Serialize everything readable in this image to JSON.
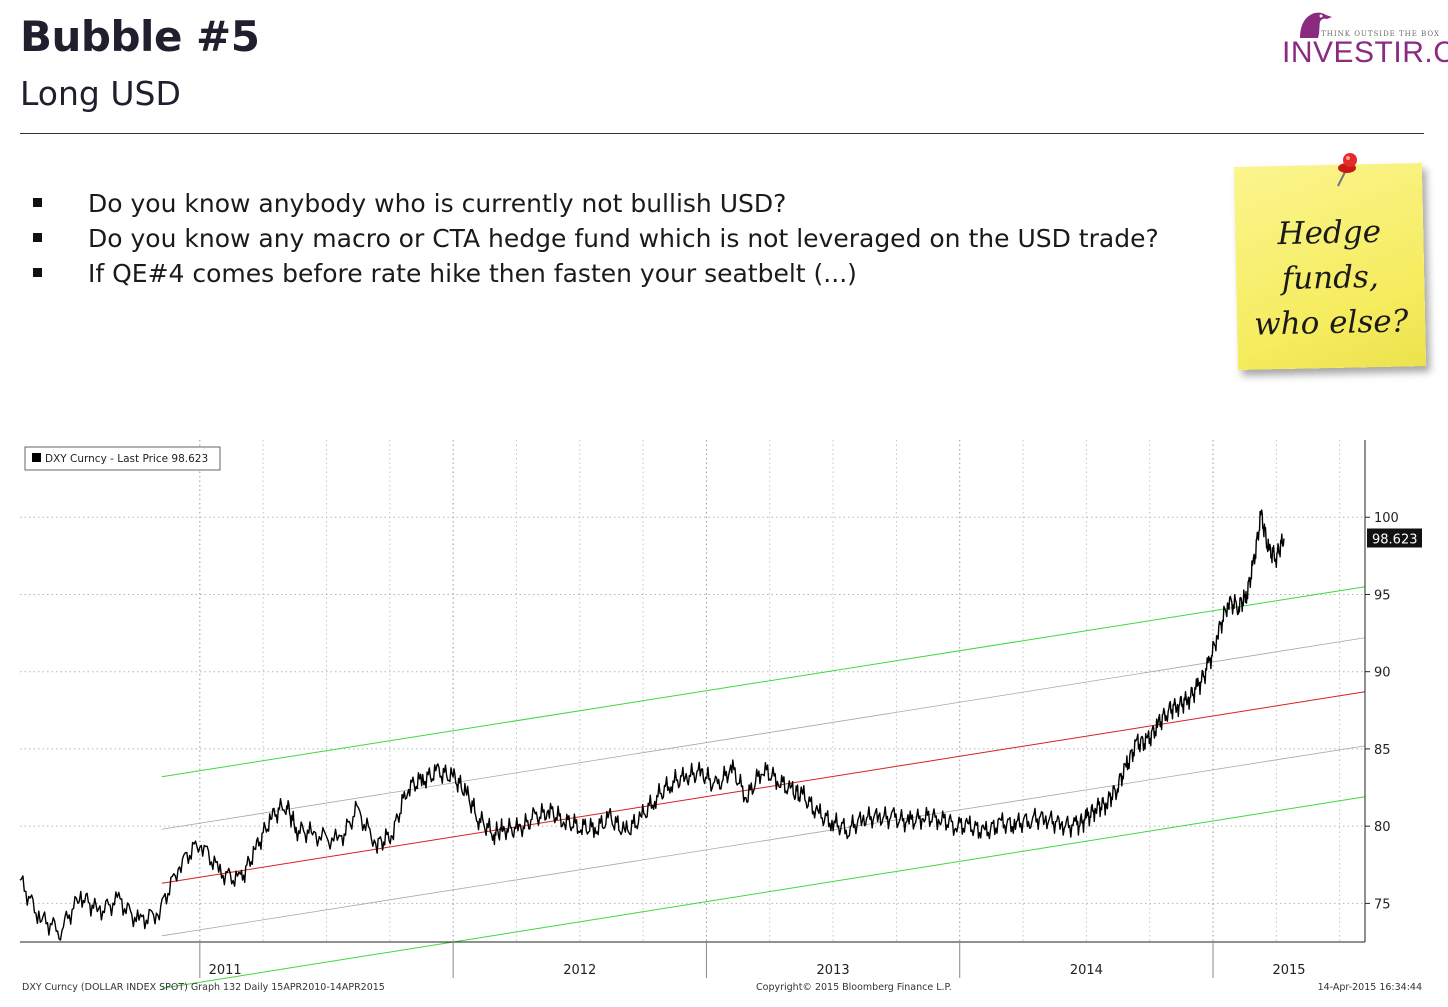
{
  "header": {
    "title": "Bubble #5",
    "subtitle": "Long USD"
  },
  "logo": {
    "name": "INVESTIR.CH",
    "tagline": "THINK OUTSIDE THE BOX"
  },
  "bullets": [
    "Do you know anybody who is currently not bullish USD?",
    "Do you know any macro or CTA hedge fund which is not leveraged on the USD trade?",
    "If QE#4 comes before rate hike then fasten your seatbelt (...)"
  ],
  "sticky_note": {
    "lines": [
      "Hedge",
      "funds,",
      "who else?"
    ]
  },
  "colors": {
    "accent": "#8a2b80",
    "note": "#f7ee6a",
    "channel_outer": "#33cc33",
    "channel_mid": "#d62020",
    "channel_inner": "#aaaaaa"
  },
  "chart_data": {
    "type": "line",
    "title": "",
    "legend": "DXY Curncy - Last Price 98.623",
    "last_price_label": "98.623",
    "x_tick_labels": [
      "2011",
      "2012",
      "2013",
      "2014",
      "2015"
    ],
    "y_tick_labels": [
      "100",
      "95",
      "90",
      "85",
      "80",
      "75"
    ],
    "ylim": [
      72.5,
      105
    ],
    "xlim": [
      2010.29,
      2015.6
    ],
    "grid": true,
    "series": [
      {
        "name": "DXY Curncy - Last Price",
        "x": [
          2010.29,
          2010.37,
          2010.45,
          2010.53,
          2010.6,
          2010.68,
          2010.76,
          2010.84,
          2010.92,
          2011.0,
          2011.08,
          2011.16,
          2011.22,
          2011.28,
          2011.34,
          2011.38,
          2011.45,
          2011.55,
          2011.62,
          2011.7,
          2011.76,
          2011.82,
          2011.88,
          2011.94,
          2012.0,
          2012.05,
          2012.1,
          2012.16,
          2012.2,
          2012.26,
          2012.32,
          2012.38,
          2012.44,
          2012.5,
          2012.56,
          2012.62,
          2012.68,
          2012.74,
          2012.8,
          2012.86,
          2012.92,
          2012.98,
          2013.04,
          2013.1,
          2013.16,
          2013.22,
          2013.28,
          2013.34,
          2013.38,
          2013.44,
          2013.5,
          2013.56,
          2013.62,
          2013.68,
          2013.74,
          2013.8,
          2013.86,
          2013.92,
          2013.98,
          2014.04,
          2014.1,
          2014.16,
          2014.22,
          2014.28,
          2014.34,
          2014.4,
          2014.46,
          2014.5,
          2014.54,
          2014.58,
          2014.62,
          2014.66,
          2014.7,
          2014.74,
          2014.78,
          2014.82,
          2014.86,
          2014.9,
          2014.94,
          2014.98,
          2015.02,
          2015.06,
          2015.1,
          2015.13,
          2015.16,
          2015.19,
          2015.22,
          2015.25,
          2015.28
        ],
        "values": [
          76.5,
          74.0,
          73.3,
          75.5,
          74.5,
          75.2,
          73.8,
          74.5,
          77.5,
          79.0,
          77.0,
          76.5,
          78.5,
          80.5,
          81.5,
          79.8,
          79.5,
          79.0,
          81.0,
          78.8,
          79.5,
          82.5,
          83.0,
          83.5,
          83.2,
          82.2,
          80.5,
          79.5,
          79.8,
          79.8,
          80.5,
          81.0,
          80.3,
          80.0,
          79.8,
          80.5,
          79.6,
          80.5,
          81.8,
          82.8,
          83.2,
          83.5,
          82.5,
          83.8,
          81.8,
          83.7,
          83.0,
          82.2,
          82.0,
          80.8,
          80.2,
          79.8,
          80.5,
          80.6,
          80.5,
          80.3,
          80.6,
          80.5,
          80.1,
          80.0,
          79.6,
          80.2,
          80.1,
          80.5,
          80.5,
          80.1,
          80.0,
          80.5,
          81.2,
          81.5,
          82.5,
          84.0,
          85.4,
          85.5,
          86.5,
          87.5,
          87.8,
          88.2,
          89.0,
          90.3,
          92.5,
          94.5,
          94.3,
          94.8,
          97.0,
          100.2,
          97.8,
          97.5,
          98.623
        ]
      }
    ],
    "channel_lines": [
      {
        "name": "upper-band",
        "color": "green",
        "x": [
          2010.85,
          2015.6
        ],
        "values": [
          83.2,
          95.5
        ]
      },
      {
        "name": "upper-mid-band",
        "color": "gray",
        "x": [
          2010.85,
          2015.6
        ],
        "values": [
          79.8,
          92.2
        ]
      },
      {
        "name": "regression",
        "color": "red",
        "x": [
          2010.85,
          2015.6
        ],
        "values": [
          76.3,
          88.7
        ]
      },
      {
        "name": "lower-mid-band",
        "color": "gray",
        "x": [
          2010.85,
          2015.6
        ],
        "values": [
          72.9,
          85.2
        ]
      },
      {
        "name": "lower-band",
        "color": "green",
        "x": [
          2010.85,
          2015.6
        ],
        "values": [
          69.5,
          81.9
        ]
      }
    ],
    "footer_left": "DXY Curncy (DOLLAR INDEX SPOT) Graph 132  Daily 15APR2010-14APR2015",
    "footer_center": "Copyright© 2015 Bloomberg Finance L.P.",
    "footer_right": "14-Apr-2015 16:34:44"
  }
}
